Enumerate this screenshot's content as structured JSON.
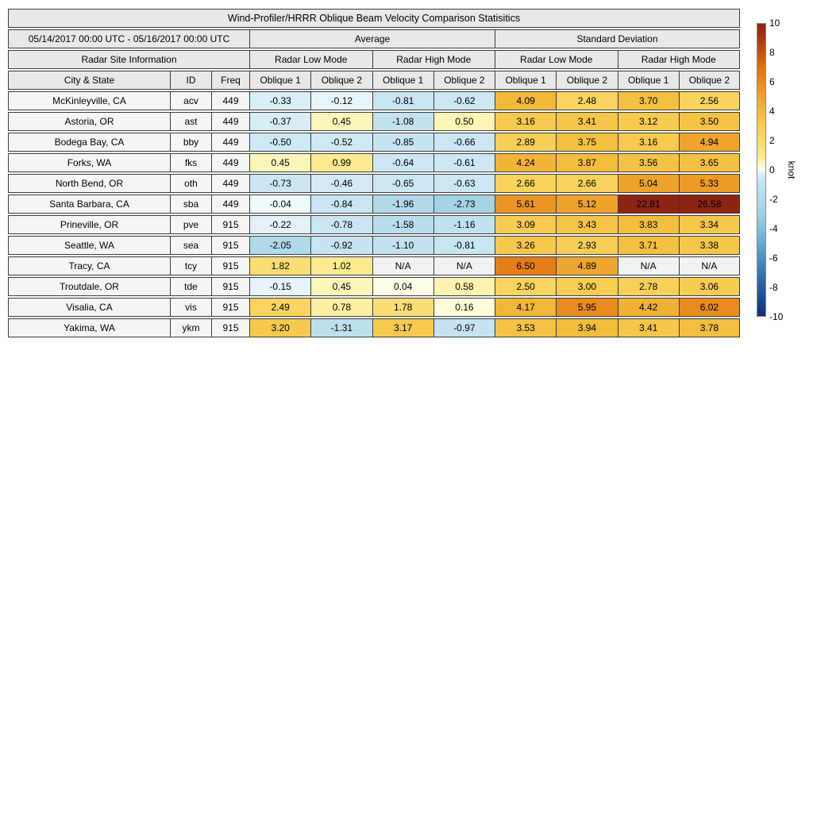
{
  "title": "Wind-Profiler/HRRR Oblique Beam Velocity Comparison Statisitics",
  "date_range": "05/14/2017 00:00 UTC - 05/16/2017 00:00 UTC",
  "groups": {
    "average": "Average",
    "std_dev": "Standard Deviation"
  },
  "subgroups": {
    "site_info": "Radar Site Information",
    "low_mode": "Radar Low Mode",
    "high_mode": "Radar High Mode"
  },
  "columns": {
    "city": "City & State",
    "id": "ID",
    "freq": "Freq",
    "oblique1": "Oblique 1",
    "oblique2": "Oblique 2"
  },
  "na_label": "N/A",
  "colorbar": {
    "label": "knot",
    "min": -10,
    "max": 10,
    "ticks": [
      10,
      8,
      6,
      4,
      2,
      0,
      -2,
      -4,
      -6,
      -8,
      -10
    ]
  },
  "colors": {
    "header_bg": "#e8e8e8",
    "label_bg": "#f5f5f5",
    "na_bg": "#f2f2f2",
    "border": "#3a3a3a",
    "colormap_stops": [
      [
        -10,
        "#0e3070"
      ],
      [
        -9,
        "#1a458f"
      ],
      [
        -8,
        "#285ea3"
      ],
      [
        -7,
        "#3878b4"
      ],
      [
        -6,
        "#4c92c3"
      ],
      [
        -5,
        "#66abd1"
      ],
      [
        -4,
        "#82c0dc"
      ],
      [
        -3,
        "#9fd1e4"
      ],
      [
        -2,
        "#b1d9ea"
      ],
      [
        -1,
        "#c4e3f0"
      ],
      [
        -0.5,
        "#cfe9f4"
      ],
      [
        -0.05,
        "#edf8fb"
      ],
      [
        0.05,
        "#fffee6"
      ],
      [
        0.5,
        "#fdf5b6"
      ],
      [
        1,
        "#fcea90"
      ],
      [
        2,
        "#fadb6d"
      ],
      [
        3,
        "#f7cd53"
      ],
      [
        4,
        "#f2bb3a"
      ],
      [
        5,
        "#eea32c"
      ],
      [
        6,
        "#e98a1e"
      ],
      [
        7,
        "#e2710f"
      ],
      [
        8,
        "#c6520e"
      ],
      [
        9,
        "#a8370d"
      ],
      [
        10,
        "#8e2412"
      ]
    ]
  },
  "chart_data": {
    "type": "heatmap",
    "title": "Wind-Profiler/HRRR Oblique Beam Velocity Comparison Statisitics",
    "value_columns": [
      "Average Radar Low Mode Oblique 1",
      "Average Radar Low Mode Oblique 2",
      "Average Radar High Mode Oblique 1",
      "Average Radar High Mode Oblique 2",
      "Standard Deviation Radar Low Mode Oblique 1",
      "Standard Deviation Radar Low Mode Oblique 2",
      "Standard Deviation Radar High Mode Oblique 1",
      "Standard Deviation Radar High Mode Oblique 2"
    ],
    "color_scale": {
      "min": -10,
      "max": 10,
      "units": "knot"
    },
    "rows": [
      {
        "city": "McKinleyville, CA",
        "id": "acv",
        "freq": "449",
        "values": [
          "-0.33",
          "-0.12",
          "-0.81",
          "-0.62",
          "4.09",
          "2.48",
          "3.70",
          "2.56"
        ]
      },
      {
        "city": "Astoria, OR",
        "id": "ast",
        "freq": "449",
        "values": [
          "-0.37",
          "0.45",
          "-1.08",
          "0.50",
          "3.16",
          "3.41",
          "3.12",
          "3.50"
        ]
      },
      {
        "city": "Bodega Bay, CA",
        "id": "bby",
        "freq": "449",
        "values": [
          "-0.50",
          "-0.52",
          "-0.85",
          "-0.66",
          "2.89",
          "3.75",
          "3.16",
          "4.94"
        ]
      },
      {
        "city": "Forks, WA",
        "id": "fks",
        "freq": "449",
        "values": [
          "0.45",
          "0.99",
          "-0.64",
          "-0.61",
          "4.24",
          "3.87",
          "3.56",
          "3.65"
        ]
      },
      {
        "city": "North Bend, OR",
        "id": "oth",
        "freq": "449",
        "values": [
          "-0.73",
          "-0.46",
          "-0.65",
          "-0.63",
          "2.66",
          "2.66",
          "5.04",
          "5.33"
        ]
      },
      {
        "city": "Santa Barbara, CA",
        "id": "sba",
        "freq": "449",
        "values": [
          "-0.04",
          "-0.84",
          "-1.96",
          "-2.73",
          "5.61",
          "5.12",
          "22.81",
          "26.58"
        ]
      },
      {
        "city": "Prineville, OR",
        "id": "pve",
        "freq": "915",
        "values": [
          "-0.22",
          "-0.78",
          "-1.58",
          "-1.16",
          "3.09",
          "3.43",
          "3.83",
          "3.34"
        ]
      },
      {
        "city": "Seattle, WA",
        "id": "sea",
        "freq": "915",
        "values": [
          "-2.05",
          "-0.92",
          "-1.10",
          "-0.81",
          "3.26",
          "2.93",
          "3.71",
          "3.38"
        ]
      },
      {
        "city": "Tracy, CA",
        "id": "tcy",
        "freq": "915",
        "values": [
          "1.82",
          "1.02",
          "N/A",
          "N/A",
          "6.50",
          "4.89",
          "N/A",
          "N/A"
        ]
      },
      {
        "city": "Troutdale, OR",
        "id": "tde",
        "freq": "915",
        "values": [
          "-0.15",
          "0.45",
          "0.04",
          "0.58",
          "2.50",
          "3.00",
          "2.78",
          "3.06"
        ]
      },
      {
        "city": "Visalia, CA",
        "id": "vis",
        "freq": "915",
        "values": [
          "2.49",
          "0.78",
          "1.78",
          "0.16",
          "4.17",
          "5.95",
          "4.42",
          "6.02"
        ]
      },
      {
        "city": "Yakima, WA",
        "id": "ykm",
        "freq": "915",
        "values": [
          "3.20",
          "-1.31",
          "3.17",
          "-0.97",
          "3.53",
          "3.94",
          "3.41",
          "3.78"
        ]
      }
    ]
  }
}
